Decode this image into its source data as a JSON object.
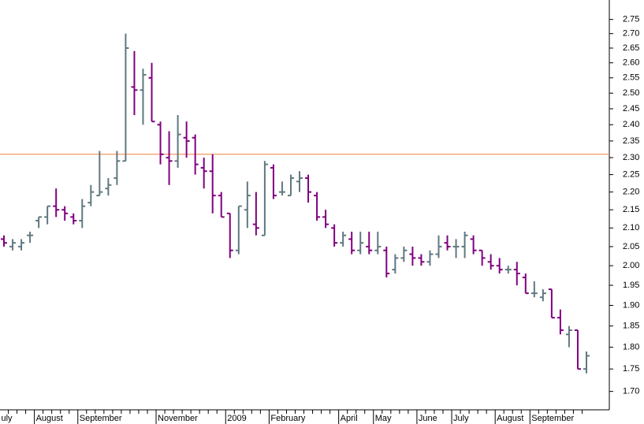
{
  "chart_data": {
    "type": "ohlc",
    "log_scale": true,
    "categories": [
      "uly",
      null,
      null,
      null,
      "August",
      null,
      null,
      null,
      null,
      "September",
      null,
      null,
      null,
      null,
      null,
      null,
      null,
      null,
      "November",
      null,
      null,
      null,
      null,
      null,
      null,
      null,
      "2009",
      null,
      null,
      null,
      null,
      "February",
      null,
      null,
      null,
      null,
      null,
      null,
      null,
      "April",
      null,
      null,
      null,
      "May",
      null,
      null,
      null,
      null,
      "June",
      null,
      null,
      null,
      "July",
      null,
      null,
      null,
      null,
      "August",
      null,
      null,
      null,
      "September",
      null,
      null,
      null,
      null,
      null,
      null
    ],
    "open": [
      2.07,
      2.05,
      2.05,
      2.08,
      2.12,
      2.13,
      2.16,
      2.15,
      2.13,
      2.12,
      2.17,
      2.19,
      2.21,
      2.24,
      2.29,
      2.52,
      2.51,
      2.55,
      2.4,
      2.3,
      2.29,
      2.36,
      2.36,
      2.27,
      2.26,
      2.19,
      2.14,
      2.04,
      2.15,
      2.11,
      2.08,
      2.27,
      2.2,
      2.19,
      2.23,
      2.24,
      2.19,
      2.13,
      2.1,
      2.06,
      2.07,
      2.04,
      2.05,
      2.04,
      2.04,
      1.99,
      2.02,
      2.03,
      2.02,
      2.01,
      2.03,
      2.06,
      2.05,
      2.05,
      2.07,
      2.04,
      2.01,
      2.0,
      1.99,
      1.99,
      1.97,
      1.93,
      1.92,
      1.94,
      1.87,
      1.83,
      1.84,
      1.75
    ],
    "high": [
      2.08,
      2.07,
      2.07,
      2.09,
      2.13,
      2.16,
      2.21,
      2.16,
      2.14,
      2.18,
      2.22,
      2.32,
      2.24,
      2.32,
      2.7,
      2.64,
      2.58,
      2.6,
      2.41,
      2.38,
      2.43,
      2.41,
      2.37,
      2.3,
      2.31,
      2.2,
      2.14,
      2.16,
      2.23,
      2.2,
      2.29,
      2.28,
      2.23,
      2.25,
      2.26,
      2.25,
      2.2,
      2.15,
      2.11,
      2.09,
      2.09,
      2.09,
      2.09,
      2.09,
      2.05,
      2.03,
      2.05,
      2.05,
      2.03,
      2.04,
      2.08,
      2.08,
      2.07,
      2.09,
      2.08,
      2.04,
      2.03,
      2.02,
      2.0,
      2.01,
      1.98,
      1.96,
      1.94,
      1.94,
      1.89,
      1.85,
      1.84,
      1.79
    ],
    "low": [
      2.05,
      2.04,
      2.04,
      2.06,
      2.1,
      2.11,
      2.13,
      2.12,
      2.11,
      2.1,
      2.16,
      2.19,
      2.19,
      2.22,
      2.29,
      2.43,
      2.4,
      2.41,
      2.28,
      2.22,
      2.27,
      2.3,
      2.25,
      2.21,
      2.14,
      2.13,
      2.02,
      2.03,
      2.1,
      2.08,
      2.08,
      2.18,
      2.19,
      2.19,
      2.2,
      2.17,
      2.12,
      2.1,
      2.05,
      2.05,
      2.03,
      2.03,
      2.03,
      2.03,
      1.97,
      1.98,
      2.01,
      2.0,
      2.0,
      2.0,
      2.02,
      2.04,
      2.02,
      2.02,
      2.03,
      2.0,
      1.99,
      1.98,
      1.98,
      1.95,
      1.93,
      1.92,
      1.91,
      1.87,
      1.83,
      1.8,
      1.75,
      1.74
    ],
    "close": [
      2.06,
      2.06,
      2.06,
      2.08,
      2.13,
      2.16,
      2.15,
      2.14,
      2.12,
      2.16,
      2.2,
      2.2,
      2.22,
      2.29,
      2.65,
      2.51,
      2.56,
      2.41,
      2.31,
      2.29,
      2.37,
      2.35,
      2.28,
      2.26,
      2.19,
      2.13,
      2.04,
      2.16,
      2.19,
      2.1,
      2.28,
      2.19,
      2.2,
      2.24,
      2.24,
      2.2,
      2.13,
      2.11,
      2.06,
      2.08,
      2.04,
      2.06,
      2.04,
      2.05,
      1.98,
      2.02,
      2.04,
      2.02,
      2.01,
      2.03,
      2.05,
      2.05,
      2.05,
      2.08,
      2.04,
      2.02,
      2.0,
      1.99,
      1.99,
      1.98,
      1.93,
      1.93,
      1.93,
      1.87,
      1.84,
      1.84,
      1.75,
      1.78
    ],
    "up_color": "#607880",
    "down_color": "#800080",
    "reference_line": 2.31,
    "reference_color": "#f08040",
    "ylim": [
      1.66,
      2.82
    ],
    "yticks": [
      {
        "value": 2.75,
        "label": "2.75"
      },
      {
        "value": 2.7,
        "label": "2.70"
      },
      {
        "value": 2.65,
        "label": "2.65"
      },
      {
        "value": 2.6,
        "label": "2.60"
      },
      {
        "value": 2.55,
        "label": "2.55"
      },
      {
        "value": 2.5,
        "label": "2.50"
      },
      {
        "value": 2.45,
        "label": "2.45"
      },
      {
        "value": 2.4,
        "label": "2.40"
      },
      {
        "value": 2.35,
        "label": "2.35"
      },
      {
        "value": 2.3,
        "label": "2.30"
      },
      {
        "value": 2.25,
        "label": "2.25"
      },
      {
        "value": 2.2,
        "label": "2.20"
      },
      {
        "value": 2.15,
        "label": "2.15"
      },
      {
        "value": 2.1,
        "label": "2.10"
      },
      {
        "value": 2.05,
        "label": "2.05"
      },
      {
        "value": 2.0,
        "label": "2.00"
      },
      {
        "value": 1.95,
        "label": "1.95"
      },
      {
        "value": 1.9,
        "label": "1.90"
      },
      {
        "value": 1.85,
        "label": "1.85"
      },
      {
        "value": 1.8,
        "label": "1.80"
      },
      {
        "value": 1.75,
        "label": "1.75"
      },
      {
        "value": 1.7,
        "label": "1.70"
      }
    ]
  }
}
